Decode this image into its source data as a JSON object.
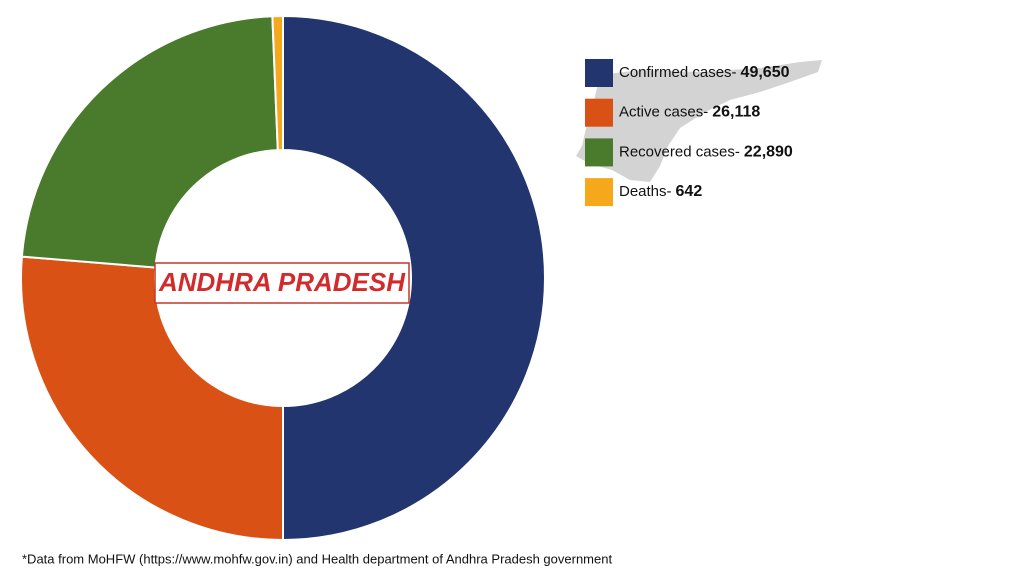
{
  "chart_data": {
    "type": "pie",
    "categories": [
      "Confirmed cases-",
      "Active cases-",
      "Recovered cases-",
      "Deaths-"
    ],
    "values": [
      49650,
      26118,
      22890,
      642
    ],
    "value_labels": [
      "49,650",
      "26,118",
      "22,890",
      "642"
    ],
    "colors": [
      "#22356f",
      "#d95115",
      "#4a7a2c",
      "#f5a81c"
    ],
    "center_label": "ANDHRA PRADESH",
    "note": "*Data from MoHFW (https://www.mohfw.gov.in) and Health department of Andhra Pradesh government"
  }
}
